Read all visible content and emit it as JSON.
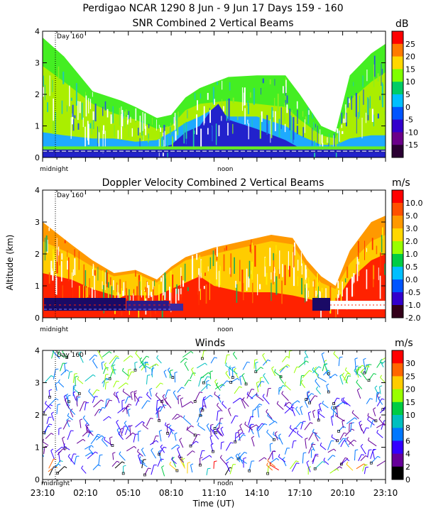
{
  "header": {
    "title": "Perdigao NCAR 1290   8 Jun -  9 Jun 17 Days 159 - 160"
  },
  "labels": {
    "day_marker": "Day 160",
    "midnight": "midnight",
    "noon": "noon",
    "y_axis": "Altitude (km)",
    "x_axis": "Time (UT)"
  },
  "chart_data": [
    {
      "type": "heatmap",
      "title": "SNR Combined 2 Vertical Beams",
      "ylabel": "Altitude (km)",
      "ylim": [
        0,
        4
      ],
      "yticks": [
        "0",
        "1",
        "2",
        "3",
        "4"
      ],
      "colorbar": {
        "unit": "dB",
        "ticks": [
          "25",
          "20",
          "15",
          "10",
          "5",
          "0",
          "-5",
          "-10",
          "-15"
        ],
        "colors": [
          "#ff0000",
          "#ff7a00",
          "#ffd700",
          "#7fff00",
          "#00cc66",
          "#00bfff",
          "#0055ff",
          "#3300cc",
          "#6a008a",
          "#2a0033"
        ]
      },
      "layers": [
        {
          "name": "green_background",
          "color": "#44ee22",
          "points": [
            [
              0,
              3.8
            ],
            [
              1.5,
              3.2
            ],
            [
              3.5,
              2.1
            ],
            [
              5.5,
              1.8
            ],
            [
              6.5,
              1.6
            ],
            [
              8,
              1.25
            ],
            [
              9,
              1.35
            ],
            [
              10,
              1.9
            ],
            [
              11,
              2.2
            ],
            [
              13,
              2.55
            ],
            [
              15,
              2.6
            ],
            [
              17,
              2.6
            ],
            [
              18,
              2.0
            ],
            [
              19.5,
              1.0
            ],
            [
              20.5,
              0.8
            ],
            [
              21.5,
              2.6
            ],
            [
              23,
              3.3
            ],
            [
              24,
              3.6
            ]
          ]
        },
        {
          "name": "snr_high_yellowgreen",
          "color": "#aaee00",
          "points": [
            [
              0,
              2.9
            ],
            [
              1.5,
              2.4
            ],
            [
              3.5,
              1.7
            ],
            [
              5,
              1.4
            ],
            [
              6.5,
              1.2
            ],
            [
              8,
              0.9
            ],
            [
              9,
              1.0
            ],
            [
              10,
              1.5
            ],
            [
              11,
              1.7
            ],
            [
              13,
              1.8
            ],
            [
              15,
              1.7
            ],
            [
              17,
              1.6
            ],
            [
              18,
              1.2
            ],
            [
              19.5,
              0.7
            ],
            [
              20.5,
              0.6
            ],
            [
              21.5,
              1.8
            ],
            [
              23,
              2.4
            ],
            [
              24,
              2.7
            ]
          ]
        },
        {
          "name": "snr_cyan",
          "color": "#1eaaff",
          "points": [
            [
              0,
              0.8
            ],
            [
              1.5,
              0.7
            ],
            [
              3.5,
              0.6
            ],
            [
              5,
              0.6
            ],
            [
              6.5,
              0.5
            ],
            [
              8,
              0.55
            ],
            [
              9,
              0.8
            ],
            [
              10,
              1.1
            ],
            [
              11,
              1.3
            ],
            [
              12,
              1.55
            ],
            [
              13,
              1.3
            ],
            [
              15,
              1.3
            ],
            [
              17,
              1.0
            ],
            [
              18,
              0.7
            ],
            [
              19.5,
              0.4
            ],
            [
              20.5,
              0.4
            ],
            [
              21.5,
              0.6
            ],
            [
              23,
              0.7
            ],
            [
              24,
              0.7
            ]
          ]
        },
        {
          "name": "snr_dark_blue",
          "color": "#2222cc",
          "points": [
            [
              0,
              0.3
            ],
            [
              3.5,
              0.3
            ],
            [
              8,
              0.3
            ],
            [
              9,
              0.4
            ],
            [
              10,
              0.8
            ],
            [
              11,
              1.0
            ],
            [
              11.8,
              1.5
            ],
            [
              12.3,
              1.7
            ],
            [
              13,
              1.2
            ],
            [
              15,
              0.9
            ],
            [
              17,
              0.55
            ],
            [
              18,
              0.3
            ],
            [
              20,
              0.25
            ],
            [
              22,
              0.3
            ],
            [
              24,
              0.3
            ]
          ]
        }
      ]
    },
    {
      "type": "heatmap",
      "title": "Doppler Velocity Combined 2 Vertical Beams",
      "ylabel": "Altitude (km)",
      "ylim": [
        0,
        4
      ],
      "yticks": [
        "0",
        "1",
        "2",
        "3",
        "4"
      ],
      "colorbar": {
        "unit": "m/s",
        "ticks": [
          "10.0",
          "5.0",
          "3.0",
          "2.0",
          "1.0",
          "0.5",
          "0.0",
          "-0.5",
          "-1.0",
          "-2.0"
        ],
        "colors": [
          "#ff0000",
          "#ff5000",
          "#ff9900",
          "#ffd700",
          "#99ff00",
          "#00cc44",
          "#00bfff",
          "#0055ff",
          "#3300cc",
          "#33001a"
        ]
      },
      "layers": [
        {
          "name": "vel_orange_base",
          "color": "#ff9900",
          "points": [
            [
              0,
              3.0
            ],
            [
              2,
              2.3
            ],
            [
              3.5,
              1.8
            ],
            [
              5,
              1.4
            ],
            [
              6.5,
              1.5
            ],
            [
              8,
              1.2
            ],
            [
              9,
              1.6
            ],
            [
              10,
              1.9
            ],
            [
              12,
              2.2
            ],
            [
              14,
              2.4
            ],
            [
              16,
              2.6
            ],
            [
              17.5,
              2.5
            ],
            [
              18.5,
              1.8
            ],
            [
              19.5,
              1.3
            ],
            [
              20.5,
              1.0
            ],
            [
              21.5,
              2.1
            ],
            [
              23,
              3.0
            ],
            [
              24,
              3.2
            ]
          ]
        },
        {
          "name": "vel_yellow",
          "color": "#ffcc00",
          "points": [
            [
              0,
              2.4
            ],
            [
              2,
              2.0
            ],
            [
              3.5,
              1.6
            ],
            [
              5,
              1.3
            ],
            [
              6.5,
              1.4
            ],
            [
              8,
              1.1
            ],
            [
              9,
              1.5
            ],
            [
              10,
              1.8
            ],
            [
              12,
              2.0
            ],
            [
              14,
              2.2
            ],
            [
              16,
              2.4
            ],
            [
              17.5,
              2.3
            ],
            [
              18.5,
              1.6
            ],
            [
              19.5,
              1.1
            ],
            [
              20.5,
              0.9
            ],
            [
              21.5,
              1.7
            ],
            [
              23,
              2.4
            ],
            [
              24,
              2.6
            ]
          ]
        },
        {
          "name": "vel_red_scatter",
          "color": "#ff2200",
          "points": [
            [
              0,
              1.4
            ],
            [
              2,
              1.2
            ],
            [
              3.5,
              0.9
            ],
            [
              5,
              0.7
            ],
            [
              6.5,
              0.7
            ],
            [
              8,
              0.7
            ],
            [
              9,
              0.9
            ],
            [
              10,
              1.1
            ],
            [
              11,
              1.3
            ],
            [
              12,
              1.0
            ],
            [
              14,
              0.8
            ],
            [
              16,
              0.8
            ],
            [
              17.5,
              0.7
            ],
            [
              18.5,
              0.6
            ],
            [
              19.5,
              0.5
            ],
            [
              20.5,
              0.5
            ],
            [
              21.5,
              1.2
            ],
            [
              23,
              1.8
            ],
            [
              24,
              2.0
            ]
          ]
        }
      ],
      "near_surface_band": "dark blue / purple with red streaks below 0.6 km"
    },
    {
      "type": "scatter",
      "subtype": "wind barbs",
      "title": "Winds",
      "ylabel": "Altitude (km)",
      "xlabel": "Time (UT)",
      "ylim": [
        0,
        4
      ],
      "yticks": [
        "0",
        "1",
        "2",
        "3",
        "4"
      ],
      "xticks": [
        "23:10",
        "02:10",
        "05:10",
        "08:10",
        "11:10",
        "14:10",
        "17:10",
        "20:10",
        "23:10"
      ],
      "colorbar": {
        "unit": "m/s",
        "ticks": [
          "30",
          "25",
          "20",
          "15",
          "10",
          "8",
          "6",
          "4",
          "2",
          "0"
        ],
        "colors": [
          "#ff0000",
          "#ff6600",
          "#ffcc00",
          "#99ff00",
          "#00cc44",
          "#00bfbf",
          "#0077ff",
          "#3300ff",
          "#660099",
          "#000000"
        ]
      },
      "dominant_speed_band": "4-6 m/s (blue/purple) between 0.5 and 2.5 km"
    }
  ]
}
